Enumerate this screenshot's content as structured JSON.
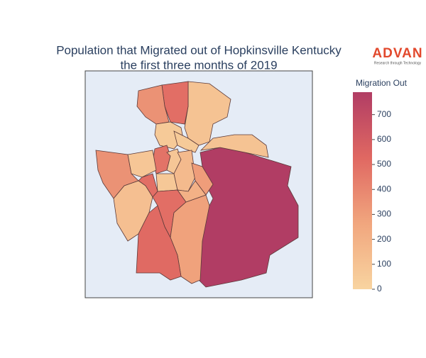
{
  "chart_data": {
    "type": "choropleth",
    "title": [
      "Population that Migrated out of Hopkinsville Kentucky",
      "the first three months of 2019"
    ],
    "colorbar_title": "Migration Out",
    "clim": [
      0,
      790
    ],
    "cticks": [
      0,
      100,
      200,
      300,
      400,
      500,
      600,
      700
    ],
    "colorscale": [
      "#f8d4a0",
      "#f1a67e",
      "#e06862",
      "#b13d64"
    ],
    "values": [
      790,
      100,
      100,
      500,
      350,
      60,
      60,
      480,
      80,
      350,
      80,
      500,
      120,
      70,
      150,
      300,
      500,
      280,
      520,
      200
    ]
  },
  "logo": {
    "name": "ADVAN",
    "tagline": "Research through Technology"
  }
}
